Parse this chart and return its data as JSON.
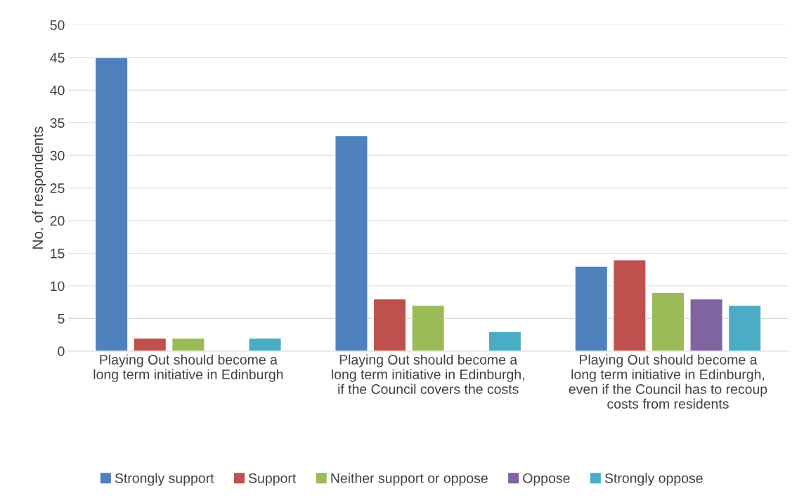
{
  "chart_data": {
    "type": "bar",
    "ylabel": "No. of respondents",
    "categories": [
      "Playing Out should become a\nlong term initiative in Edinburgh",
      "Playing Out should become a\nlong term initiative in Edinburgh,\nif the Council covers the costs",
      "Playing Out should become a\nlong term initiative in Edinburgh,\neven if the Council has to recoup\ncosts from residents"
    ],
    "series": [
      {
        "name": "Strongly support",
        "color": "#4f81bd",
        "values": [
          45,
          33,
          13
        ]
      },
      {
        "name": "Support",
        "color": "#c0504d",
        "values": [
          2,
          8,
          14
        ]
      },
      {
        "name": "Neither support or oppose",
        "color": "#9bbb59",
        "values": [
          2,
          7,
          9
        ]
      },
      {
        "name": "Oppose",
        "color": "#8064a2",
        "values": [
          null,
          null,
          8
        ]
      },
      {
        "name": "Strongly oppose",
        "color": "#4bacc6",
        "values": [
          2,
          3,
          7
        ]
      }
    ],
    "ylim": [
      0,
      50
    ],
    "yticks": [
      0,
      5,
      10,
      15,
      20,
      25,
      30,
      35,
      40,
      45,
      50
    ],
    "grid": "y",
    "legend": "bottom"
  }
}
